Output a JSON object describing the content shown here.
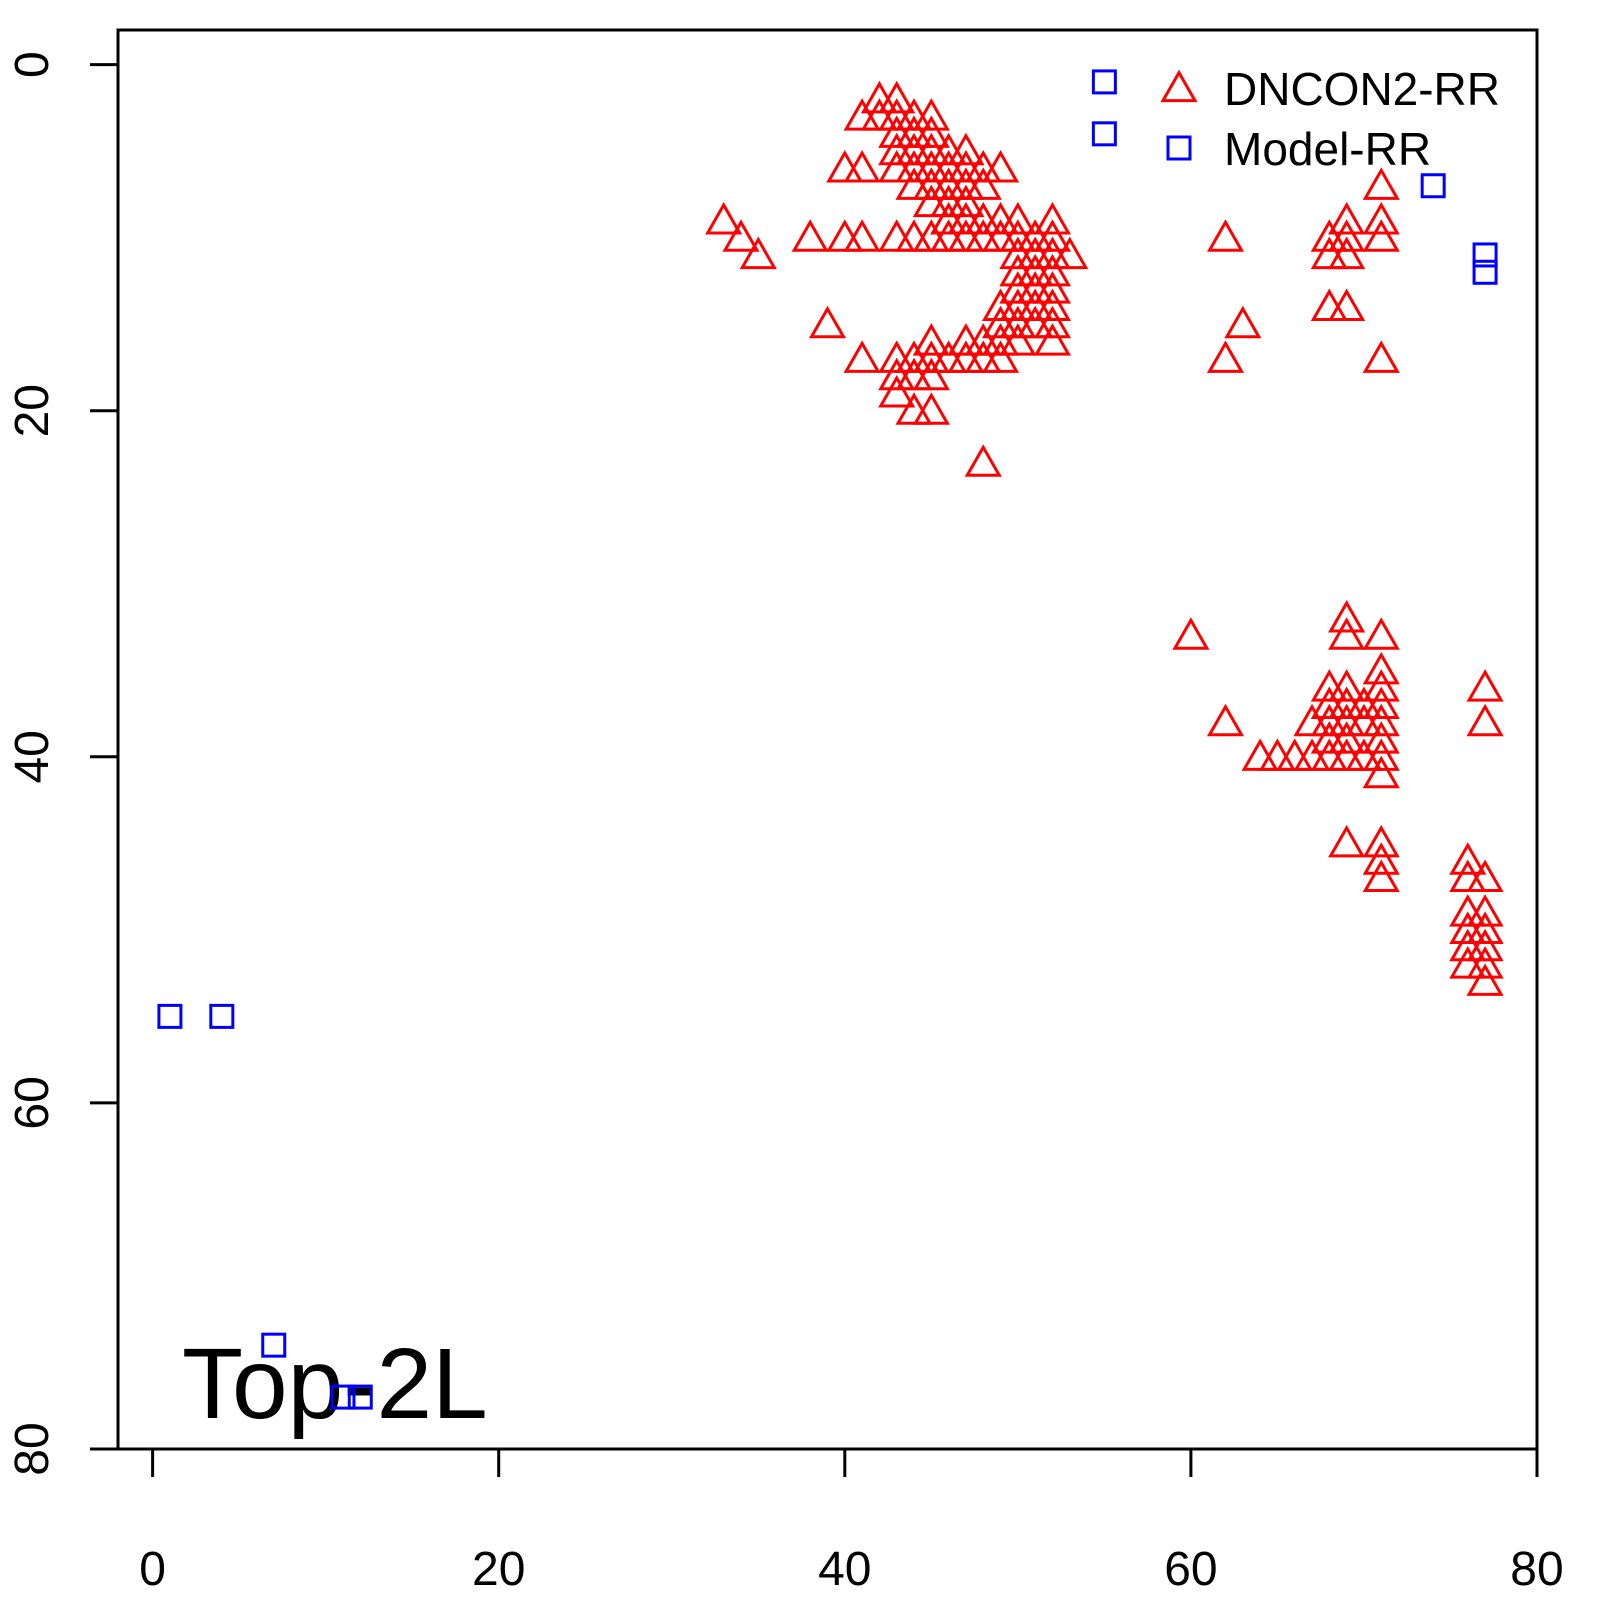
{
  "chart_data": {
    "type": "scatter",
    "xlim": [
      -2,
      80
    ],
    "ylim": [
      80,
      -2
    ],
    "xticks": [
      0,
      20,
      40,
      60,
      80
    ],
    "yticks": [
      0,
      20,
      40,
      60,
      80
    ],
    "legend": "top-right",
    "annotation": "Top-2L",
    "series": [
      {
        "name": "DNCON2-RR",
        "color": "#ff0000",
        "marker": "triangle",
        "x": [
          42,
          43,
          41,
          42,
          43,
          44,
          45,
          43,
          44,
          45,
          43,
          44,
          45,
          46,
          47,
          40,
          41,
          43,
          44,
          45,
          46,
          47,
          48,
          49,
          44,
          45,
          46,
          47,
          48,
          71,
          45,
          46,
          47,
          33,
          46,
          47,
          48,
          49,
          50,
          52,
          69,
          71,
          34,
          38,
          40,
          41,
          43,
          44,
          45,
          46,
          47,
          48,
          49,
          50,
          51,
          52,
          62,
          68,
          69,
          71,
          35,
          50,
          51,
          52,
          53,
          68,
          69,
          50,
          51,
          52,
          50,
          51,
          52,
          49,
          50,
          51,
          52,
          68,
          69,
          39,
          49,
          50,
          51,
          52,
          63,
          45,
          47,
          48,
          49,
          50,
          52,
          41,
          43,
          44,
          45,
          46,
          47,
          48,
          49,
          62,
          71,
          43,
          44,
          45,
          43,
          44,
          45,
          48,
          60,
          69,
          69,
          71,
          71,
          68,
          69,
          71,
          77,
          68,
          69,
          70,
          71,
          62,
          67,
          68,
          69,
          70,
          71,
          77,
          68,
          69,
          71,
          64,
          65,
          66,
          67,
          68,
          69,
          70,
          71,
          71,
          69,
          71,
          71,
          76,
          71,
          76,
          77,
          76,
          77,
          76,
          77,
          76,
          77,
          76,
          77,
          77
        ],
        "values": [
          2,
          2,
          3,
          3,
          3,
          3,
          3,
          4,
          4,
          4,
          5,
          5,
          5,
          5,
          5,
          6,
          6,
          6,
          6,
          6,
          6,
          6,
          6,
          6,
          7,
          7,
          7,
          7,
          7,
          7,
          8,
          8,
          8,
          9,
          9,
          9,
          9,
          9,
          9,
          9,
          9,
          9,
          10,
          10,
          10,
          10,
          10,
          10,
          10,
          10,
          10,
          10,
          10,
          10,
          10,
          10,
          10,
          10,
          10,
          10,
          11,
          11,
          11,
          11,
          11,
          11,
          11,
          12,
          12,
          12,
          13,
          13,
          13,
          14,
          14,
          14,
          14,
          14,
          14,
          15,
          15,
          15,
          15,
          15,
          15,
          16,
          16,
          16,
          16,
          16,
          16,
          17,
          17,
          17,
          17,
          17,
          17,
          17,
          17,
          17,
          17,
          18,
          18,
          18,
          19,
          20,
          20,
          23,
          33,
          32,
          33,
          33,
          35,
          36,
          36,
          36,
          36,
          37,
          37,
          37,
          37,
          38,
          38,
          38,
          38,
          38,
          38,
          38,
          39,
          39,
          39,
          40,
          40,
          40,
          40,
          40,
          40,
          40,
          40,
          41,
          45,
          45,
          46,
          46,
          47,
          47,
          47,
          49,
          49,
          50,
          50,
          51,
          51,
          52,
          52,
          53
        ]
      },
      {
        "name": "Model-RR",
        "color": "#0000ff",
        "marker": "square",
        "x": [
          55,
          55,
          74,
          77,
          77,
          1,
          4,
          7,
          11,
          12
        ],
        "values": [
          1,
          4,
          7,
          11,
          12,
          55,
          55,
          74,
          77,
          77
        ]
      }
    ]
  }
}
